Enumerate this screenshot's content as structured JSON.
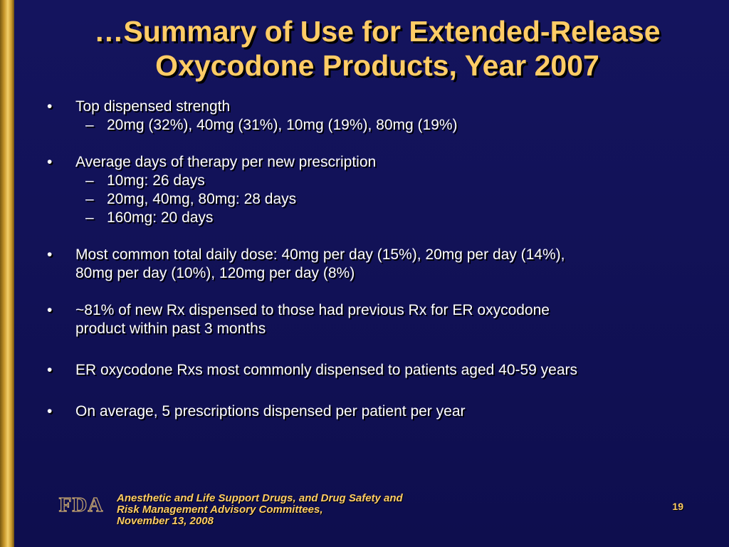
{
  "slide": {
    "title_line1": "…Summary of Use for Extended-Release",
    "title_line2": "Oxycodone Products, Year 2007",
    "bullet_glyph": "•",
    "dash_glyph": "–",
    "bullets": [
      {
        "text": "Top dispensed strength",
        "subs": [
          "20mg (32%), 40mg (31%), 10mg (19%), 80mg (19%)"
        ]
      },
      {
        "text": "Average days of therapy per new prescription",
        "subs": [
          "10mg:  26 days",
          "20mg, 40mg, 80mg:  28 days",
          "160mg:  20 days"
        ]
      },
      {
        "line1": "Most common total daily dose:  40mg per day (15%), 20mg per day (14%),",
        "line2": "80mg per day (10%), 120mg per day (8%)"
      },
      {
        "line1": "~81% of new Rx dispensed to those had previous Rx for ER oxycodone",
        "line2": "product within past 3 months"
      },
      {
        "text": "ER oxycodone Rxs most commonly dispensed to patients aged 40-59 years"
      },
      {
        "text": "On average, 5 prescriptions dispensed per patient per year"
      }
    ]
  },
  "footer": {
    "logo_text": "FDA",
    "line1": "Anesthetic and Life Support Drugs, and Drug Safety and",
    "line2": "Risk Management Advisory Committees,",
    "line3": "November 13, 2008",
    "page_number": "19"
  },
  "colors": {
    "background": "#121258",
    "title": "#ffcc66",
    "body_text": "#ffffff",
    "accent_bar": "#d4a437",
    "footer_text": "#ffcc66"
  }
}
